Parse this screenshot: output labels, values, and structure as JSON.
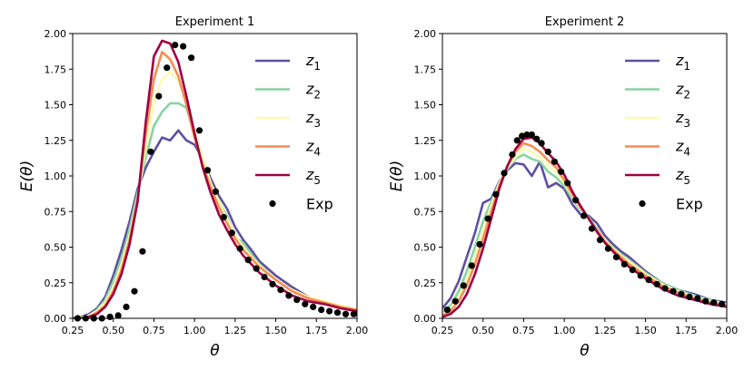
{
  "chart_data": [
    {
      "type": "line",
      "title": "Experiment 1",
      "xlabel": "θ",
      "ylabel": "E(θ)",
      "xlim": [
        0.25,
        2.0
      ],
      "ylim": [
        0.0,
        2.0
      ],
      "xticks": [
        "0.25",
        "0.50",
        "0.75",
        "1.00",
        "1.25",
        "1.50",
        "1.75",
        "2.00"
      ],
      "yticks": [
        "0.00",
        "0.25",
        "0.50",
        "0.75",
        "1.00",
        "1.25",
        "1.50",
        "1.75",
        "2.00"
      ],
      "grid": false,
      "legend_position": "top-right",
      "series": [
        {
          "name": "z1",
          "color": "#5e4fa2",
          "x": [
            0.25,
            0.3,
            0.35,
            0.4,
            0.45,
            0.5,
            0.55,
            0.6,
            0.65,
            0.7,
            0.75,
            0.8,
            0.85,
            0.9,
            0.95,
            1.0,
            1.05,
            1.1,
            1.15,
            1.2,
            1.25,
            1.3,
            1.35,
            1.4,
            1.5,
            1.6,
            1.7,
            1.8,
            1.9,
            2.0
          ],
          "y": [
            0.0,
            0.01,
            0.03,
            0.07,
            0.15,
            0.3,
            0.48,
            0.68,
            0.91,
            1.06,
            1.17,
            1.27,
            1.25,
            1.32,
            1.25,
            1.22,
            1.12,
            0.98,
            0.86,
            0.77,
            0.64,
            0.55,
            0.48,
            0.4,
            0.3,
            0.22,
            0.15,
            0.11,
            0.08,
            0.06
          ]
        },
        {
          "name": "z2",
          "color": "#88d4a4",
          "x": [
            0.25,
            0.3,
            0.35,
            0.4,
            0.45,
            0.5,
            0.55,
            0.6,
            0.65,
            0.7,
            0.75,
            0.8,
            0.85,
            0.9,
            0.95,
            1.0,
            1.05,
            1.1,
            1.15,
            1.2,
            1.25,
            1.3,
            1.35,
            1.4,
            1.5,
            1.6,
            1.7,
            1.8,
            1.9,
            2.0
          ],
          "y": [
            0.0,
            0.01,
            0.02,
            0.06,
            0.13,
            0.26,
            0.42,
            0.63,
            0.88,
            1.13,
            1.35,
            1.45,
            1.51,
            1.51,
            1.48,
            1.3,
            1.12,
            0.92,
            0.82,
            0.72,
            0.57,
            0.53,
            0.45,
            0.38,
            0.27,
            0.2,
            0.14,
            0.11,
            0.08,
            0.05
          ]
        },
        {
          "name": "z3",
          "color": "#fcfbb5",
          "x": [
            0.25,
            0.3,
            0.35,
            0.4,
            0.45,
            0.5,
            0.55,
            0.6,
            0.65,
            0.7,
            0.75,
            0.8,
            0.85,
            0.9,
            0.95,
            1.0,
            1.05,
            1.1,
            1.15,
            1.2,
            1.25,
            1.3,
            1.35,
            1.4,
            1.5,
            1.6,
            1.7,
            1.8,
            1.9,
            2.0
          ],
          "y": [
            0.0,
            0.0,
            0.02,
            0.05,
            0.11,
            0.22,
            0.38,
            0.58,
            0.85,
            1.2,
            1.52,
            1.68,
            1.73,
            1.67,
            1.53,
            1.32,
            1.13,
            0.95,
            0.82,
            0.7,
            0.58,
            0.5,
            0.43,
            0.37,
            0.27,
            0.2,
            0.15,
            0.12,
            0.09,
            0.06
          ]
        },
        {
          "name": "z4",
          "color": "#f48d52",
          "x": [
            0.25,
            0.3,
            0.35,
            0.4,
            0.45,
            0.5,
            0.55,
            0.6,
            0.65,
            0.7,
            0.75,
            0.8,
            0.85,
            0.9,
            0.95,
            1.0,
            1.05,
            1.1,
            1.15,
            1.2,
            1.25,
            1.3,
            1.35,
            1.4,
            1.5,
            1.6,
            1.7,
            1.8,
            1.9,
            2.0
          ],
          "y": [
            0.0,
            0.0,
            0.01,
            0.04,
            0.09,
            0.19,
            0.34,
            0.55,
            0.84,
            1.3,
            1.68,
            1.87,
            1.82,
            1.7,
            1.5,
            1.27,
            1.08,
            0.92,
            0.78,
            0.67,
            0.56,
            0.48,
            0.42,
            0.36,
            0.27,
            0.19,
            0.14,
            0.11,
            0.08,
            0.06
          ]
        },
        {
          "name": "z5",
          "color": "#9e0142",
          "x": [
            0.25,
            0.3,
            0.35,
            0.4,
            0.45,
            0.5,
            0.55,
            0.6,
            0.65,
            0.7,
            0.75,
            0.8,
            0.85,
            0.9,
            0.95,
            1.0,
            1.05,
            1.1,
            1.15,
            1.2,
            1.25,
            1.3,
            1.35,
            1.4,
            1.5,
            1.6,
            1.7,
            1.8,
            1.9,
            2.0
          ],
          "y": [
            0.0,
            0.0,
            0.01,
            0.03,
            0.08,
            0.17,
            0.31,
            0.52,
            0.82,
            1.38,
            1.84,
            1.95,
            1.93,
            1.8,
            1.56,
            1.3,
            1.06,
            0.88,
            0.73,
            0.62,
            0.52,
            0.44,
            0.38,
            0.32,
            0.23,
            0.16,
            0.12,
            0.1,
            0.07,
            0.05
          ]
        }
      ],
      "scatter": {
        "name": "Exp",
        "color": "#000000",
        "x": [
          0.28,
          0.33,
          0.38,
          0.43,
          0.48,
          0.53,
          0.58,
          0.63,
          0.68,
          0.73,
          0.78,
          0.83,
          0.88,
          0.93,
          0.98,
          1.03,
          1.08,
          1.13,
          1.18,
          1.23,
          1.28,
          1.33,
          1.38,
          1.43,
          1.48,
          1.53,
          1.58,
          1.63,
          1.68,
          1.73,
          1.78,
          1.83,
          1.88,
          1.93,
          1.98
        ],
        "y": [
          0.0,
          0.0,
          0.0,
          0.0,
          0.01,
          0.02,
          0.08,
          0.19,
          0.47,
          1.17,
          1.56,
          1.76,
          1.92,
          1.91,
          1.83,
          1.32,
          1.04,
          0.89,
          0.71,
          0.6,
          0.49,
          0.41,
          0.35,
          0.29,
          0.24,
          0.2,
          0.16,
          0.13,
          0.1,
          0.08,
          0.06,
          0.05,
          0.04,
          0.03,
          0.03
        ]
      }
    },
    {
      "type": "line",
      "title": "Experiment 2",
      "xlabel": "θ",
      "ylabel": "E(θ)",
      "xlim": [
        0.25,
        2.0
      ],
      "ylim": [
        0.0,
        2.0
      ],
      "xticks": [
        "0.25",
        "0.50",
        "0.75",
        "1.00",
        "1.25",
        "1.50",
        "1.75",
        "2.00"
      ],
      "yticks": [
        "0.00",
        "0.25",
        "0.50",
        "0.75",
        "1.00",
        "1.25",
        "1.50",
        "1.75",
        "2.00"
      ],
      "grid": false,
      "legend_position": "top-right",
      "series": [
        {
          "name": "z1",
          "color": "#5e4fa2",
          "x": [
            0.25,
            0.3,
            0.35,
            0.4,
            0.45,
            0.5,
            0.55,
            0.6,
            0.65,
            0.7,
            0.75,
            0.8,
            0.85,
            0.9,
            0.95,
            1.0,
            1.05,
            1.1,
            1.15,
            1.2,
            1.25,
            1.3,
            1.35,
            1.4,
            1.5,
            1.6,
            1.7,
            1.8,
            1.9,
            2.0
          ],
          "y": [
            0.07,
            0.14,
            0.26,
            0.43,
            0.6,
            0.81,
            0.84,
            0.96,
            1.04,
            1.09,
            1.08,
            1.0,
            1.1,
            0.92,
            0.95,
            0.91,
            0.8,
            0.73,
            0.72,
            0.67,
            0.58,
            0.52,
            0.47,
            0.43,
            0.33,
            0.25,
            0.2,
            0.17,
            0.13,
            0.11
          ]
        },
        {
          "name": "z2",
          "color": "#88d4a4",
          "x": [
            0.25,
            0.3,
            0.35,
            0.4,
            0.45,
            0.5,
            0.55,
            0.6,
            0.65,
            0.7,
            0.75,
            0.8,
            0.85,
            0.9,
            0.95,
            1.0,
            1.05,
            1.1,
            1.15,
            1.2,
            1.25,
            1.3,
            1.35,
            1.4,
            1.5,
            1.6,
            1.7,
            1.8,
            1.9,
            2.0
          ],
          "y": [
            0.04,
            0.09,
            0.19,
            0.33,
            0.5,
            0.68,
            0.82,
            0.95,
            1.05,
            1.12,
            1.15,
            1.12,
            1.1,
            1.03,
            0.99,
            0.93,
            0.84,
            0.76,
            0.71,
            0.63,
            0.55,
            0.5,
            0.45,
            0.41,
            0.32,
            0.25,
            0.2,
            0.16,
            0.13,
            0.1
          ]
        },
        {
          "name": "z3",
          "color": "#fcfbb5",
          "x": [
            0.25,
            0.3,
            0.35,
            0.4,
            0.45,
            0.5,
            0.55,
            0.6,
            0.65,
            0.7,
            0.75,
            0.8,
            0.85,
            0.9,
            0.95,
            1.0,
            1.05,
            1.1,
            1.15,
            1.2,
            1.25,
            1.3,
            1.35,
            1.4,
            1.5,
            1.6,
            1.7,
            1.8,
            1.9,
            2.0
          ],
          "y": [
            0.03,
            0.07,
            0.15,
            0.27,
            0.43,
            0.61,
            0.79,
            0.95,
            1.06,
            1.13,
            1.19,
            1.17,
            1.13,
            1.07,
            1.03,
            0.95,
            0.86,
            0.77,
            0.7,
            0.62,
            0.55,
            0.49,
            0.44,
            0.4,
            0.31,
            0.24,
            0.19,
            0.15,
            0.12,
            0.1
          ]
        },
        {
          "name": "z4",
          "color": "#f48d52",
          "x": [
            0.25,
            0.3,
            0.35,
            0.4,
            0.45,
            0.5,
            0.55,
            0.6,
            0.65,
            0.7,
            0.75,
            0.8,
            0.85,
            0.9,
            0.95,
            1.0,
            1.05,
            1.1,
            1.15,
            1.2,
            1.25,
            1.3,
            1.35,
            1.4,
            1.5,
            1.6,
            1.7,
            1.8,
            1.9,
            2.0
          ],
          "y": [
            0.02,
            0.05,
            0.12,
            0.23,
            0.38,
            0.56,
            0.75,
            0.93,
            1.07,
            1.17,
            1.23,
            1.21,
            1.17,
            1.11,
            1.06,
            0.97,
            0.87,
            0.78,
            0.7,
            0.62,
            0.54,
            0.48,
            0.43,
            0.38,
            0.3,
            0.23,
            0.18,
            0.14,
            0.11,
            0.09
          ]
        },
        {
          "name": "z5",
          "color": "#9e0142",
          "x": [
            0.25,
            0.3,
            0.35,
            0.4,
            0.45,
            0.5,
            0.55,
            0.6,
            0.65,
            0.7,
            0.75,
            0.8,
            0.85,
            0.9,
            0.95,
            1.0,
            1.05,
            1.1,
            1.15,
            1.2,
            1.25,
            1.3,
            1.35,
            1.4,
            1.5,
            1.6,
            1.7,
            1.8,
            1.9,
            2.0
          ],
          "y": [
            0.01,
            0.03,
            0.08,
            0.17,
            0.31,
            0.49,
            0.7,
            0.91,
            1.07,
            1.19,
            1.26,
            1.27,
            1.23,
            1.16,
            1.1,
            1.01,
            0.89,
            0.79,
            0.7,
            0.61,
            0.53,
            0.47,
            0.41,
            0.36,
            0.28,
            0.21,
            0.16,
            0.13,
            0.1,
            0.08
          ]
        }
      ],
      "scatter": {
        "name": "Exp",
        "color": "#000000",
        "x": [
          0.28,
          0.33,
          0.38,
          0.43,
          0.48,
          0.53,
          0.58,
          0.63,
          0.68,
          0.71,
          0.74,
          0.77,
          0.8,
          0.83,
          0.86,
          0.9,
          0.94,
          0.98,
          1.02,
          1.07,
          1.12,
          1.17,
          1.22,
          1.27,
          1.32,
          1.37,
          1.42,
          1.47,
          1.52,
          1.57,
          1.62,
          1.67,
          1.72,
          1.77,
          1.82,
          1.87,
          1.92,
          1.97
        ],
        "y": [
          0.06,
          0.12,
          0.23,
          0.37,
          0.52,
          0.7,
          0.87,
          1.02,
          1.15,
          1.25,
          1.28,
          1.29,
          1.29,
          1.26,
          1.23,
          1.17,
          1.1,
          1.03,
          0.95,
          0.83,
          0.72,
          0.63,
          0.55,
          0.49,
          0.43,
          0.38,
          0.34,
          0.3,
          0.27,
          0.24,
          0.21,
          0.19,
          0.17,
          0.15,
          0.14,
          0.12,
          0.11,
          0.1
        ]
      }
    }
  ]
}
